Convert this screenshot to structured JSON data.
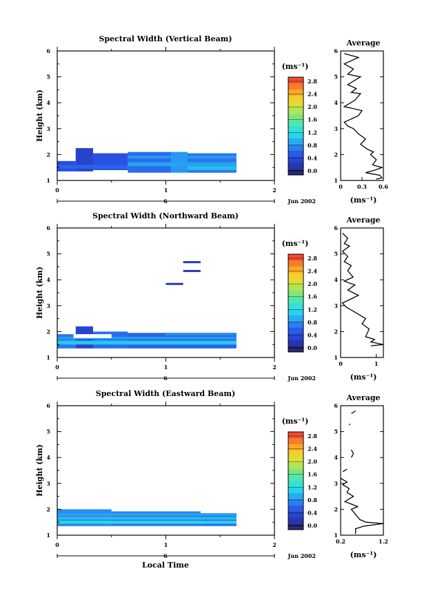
{
  "figure": {
    "xlabel": "Local Time",
    "date_label": "Jun 2002",
    "date_day": "6",
    "height_label": "Height (km)",
    "colorbar_unit": "(ms⁻¹)",
    "avg_title": "Average",
    "avg_xlabel": "(ms⁻¹)"
  },
  "chart_data": [
    {
      "type": "heatmap",
      "title": "Spectral Width (Vertical Beam)",
      "ylabel": "Height (km)",
      "xlim": [
        0,
        2
      ],
      "ylim": [
        1,
        6
      ],
      "x_ticks": [
        "0",
        "1",
        "2"
      ],
      "y_ticks": [
        "1",
        "2",
        "3",
        "4",
        "5",
        "6"
      ],
      "colorbar": {
        "ticks": [
          "0.0",
          "0.4",
          "0.8",
          "1.2",
          "1.6",
          "2.0",
          "2.4",
          "2.8"
        ],
        "range": [
          0,
          3.0
        ]
      },
      "cells": [
        [
          0.0,
          0.17,
          1.35,
          1.75,
          0.55
        ],
        [
          0.17,
          0.33,
          1.35,
          2.25,
          0.45
        ],
        [
          0.33,
          0.65,
          1.4,
          2.05,
          0.6
        ],
        [
          0.65,
          1.05,
          1.3,
          2.1,
          0.75
        ],
        [
          1.05,
          1.2,
          1.3,
          2.1,
          0.95
        ],
        [
          1.2,
          1.65,
          1.3,
          2.05,
          0.8
        ],
        [
          0.0,
          0.65,
          1.45,
          1.6,
          0.7
        ],
        [
          0.65,
          1.65,
          1.55,
          1.7,
          1.0
        ],
        [
          0.65,
          1.65,
          1.85,
          1.95,
          0.95
        ],
        [
          1.2,
          1.65,
          1.4,
          1.55,
          1.1
        ]
      ],
      "average": {
        "xlim": [
          0,
          0.6
        ],
        "x_ticks": [
          "0",
          "0.3",
          "0.6"
        ],
        "profile": [
          [
            0.5,
            1.05
          ],
          [
            0.58,
            1.1
          ],
          [
            0.55,
            1.2
          ],
          [
            0.35,
            1.3
          ],
          [
            0.48,
            1.4
          ],
          [
            0.58,
            1.5
          ],
          [
            0.45,
            1.6
          ],
          [
            0.5,
            1.8
          ],
          [
            0.42,
            2.0
          ],
          [
            0.46,
            2.1
          ],
          [
            0.38,
            2.2
          ],
          [
            0.28,
            2.4
          ],
          [
            0.35,
            2.6
          ],
          [
            0.25,
            2.8
          ],
          [
            0.18,
            3.0
          ],
          [
            0.1,
            3.1
          ],
          [
            0.05,
            3.25
          ],
          [
            0.25,
            3.5
          ],
          [
            0.3,
            3.7
          ],
          [
            0.05,
            3.85
          ],
          [
            0.2,
            4.1
          ],
          [
            0.28,
            4.35
          ],
          [
            0.15,
            4.4
          ],
          [
            0.22,
            4.55
          ],
          [
            0.1,
            4.7
          ],
          [
            0.28,
            5.0
          ],
          [
            0.1,
            5.1
          ],
          [
            0.18,
            5.3
          ],
          [
            0.05,
            5.5
          ],
          [
            0.25,
            5.75
          ],
          [
            0.05,
            5.9
          ]
        ]
      }
    },
    {
      "type": "heatmap",
      "title": "Spectral Width (Northward Beam)",
      "ylabel": "Height (km)",
      "xlim": [
        0,
        2
      ],
      "ylim": [
        1,
        6
      ],
      "x_ticks": [
        "0",
        "1",
        "2"
      ],
      "y_ticks": [
        "1",
        "2",
        "3",
        "4",
        "5",
        "6"
      ],
      "colorbar": {
        "ticks": [
          "0.0",
          "0.4",
          "0.8",
          "1.2",
          "1.6",
          "2.0",
          "2.4",
          "2.8"
        ],
        "range": [
          0,
          3.0
        ]
      },
      "cells": [
        [
          0.0,
          0.17,
          1.35,
          1.9,
          0.8
        ],
        [
          0.17,
          0.33,
          1.35,
          2.2,
          0.45
        ],
        [
          0.33,
          0.65,
          1.35,
          2.0,
          0.75
        ],
        [
          0.65,
          1.65,
          1.35,
          1.95,
          0.7
        ],
        [
          0.0,
          1.65,
          1.5,
          1.65,
          1.15
        ],
        [
          0.0,
          1.65,
          1.7,
          1.8,
          0.95
        ],
        [
          1.0,
          1.65,
          1.85,
          1.95,
          0.9
        ],
        [
          0.15,
          0.5,
          1.75,
          1.9,
          -1
        ],
        [
          1.0,
          1.16,
          3.8,
          3.88,
          0.3
        ],
        [
          1.16,
          1.32,
          4.3,
          4.38,
          0.3
        ],
        [
          1.16,
          1.32,
          4.64,
          4.72,
          0.3
        ]
      ],
      "average": {
        "xlim": [
          0,
          1.2
        ],
        "x_ticks": [
          "0",
          "1"
        ],
        "profile": [
          [
            0.85,
            1.45
          ],
          [
            1.2,
            1.5
          ],
          [
            0.85,
            1.6
          ],
          [
            0.95,
            1.7
          ],
          [
            0.7,
            1.8
          ],
          [
            0.8,
            2.1
          ],
          [
            0.6,
            2.3
          ],
          [
            0.7,
            2.5
          ],
          [
            0.4,
            2.75
          ],
          [
            0.15,
            2.95
          ],
          [
            0.05,
            3.1
          ],
          [
            0.35,
            3.3
          ],
          [
            0.5,
            3.4
          ],
          [
            0.2,
            3.6
          ],
          [
            0.4,
            3.8
          ],
          [
            0.1,
            3.95
          ],
          [
            0.35,
            4.1
          ],
          [
            0.2,
            4.35
          ],
          [
            0.3,
            4.55
          ],
          [
            0.1,
            4.7
          ],
          [
            0.2,
            4.9
          ],
          [
            0.05,
            5.1
          ],
          [
            0.25,
            5.3
          ],
          [
            0.1,
            5.4
          ],
          [
            0.2,
            5.6
          ],
          [
            0.05,
            5.8
          ]
        ]
      }
    },
    {
      "type": "heatmap",
      "title": "Spectral Width (Eastward Beam)",
      "ylabel": "Height (km)",
      "xlim": [
        0,
        2
      ],
      "ylim": [
        1,
        6
      ],
      "x_ticks": [
        "0",
        "1",
        "2"
      ],
      "y_ticks": [
        "1",
        "2",
        "3",
        "4",
        "5",
        "6"
      ],
      "colorbar": {
        "ticks": [
          "0.0",
          "0.4",
          "0.8",
          "1.2",
          "1.6",
          "2.0",
          "2.4",
          "2.8"
        ],
        "range": [
          0,
          3.0
        ]
      },
      "cells": [
        [
          0.0,
          0.5,
          1.35,
          2.0,
          0.9
        ],
        [
          0.5,
          1.32,
          1.35,
          1.92,
          0.85
        ],
        [
          1.32,
          1.65,
          1.35,
          1.85,
          0.8
        ],
        [
          0.0,
          1.65,
          1.45,
          1.55,
          1.3
        ],
        [
          0.0,
          1.65,
          1.6,
          1.7,
          1.1
        ],
        [
          0.0,
          1.65,
          1.75,
          1.85,
          1.0
        ]
      ],
      "average": {
        "xlim": [
          0.2,
          1.2
        ],
        "x_ticks": [
          "0.2",
          "1.2"
        ],
        "profile": [
          [
            0.55,
            1.05
          ],
          [
            0.55,
            1.25
          ],
          [
            0.75,
            1.35
          ],
          [
            1.2,
            1.45
          ],
          [
            0.8,
            1.5
          ],
          [
            0.65,
            1.6
          ],
          [
            0.55,
            1.8
          ],
          [
            0.45,
            2.0
          ],
          [
            0.6,
            2.1
          ],
          [
            0.3,
            2.3
          ],
          [
            0.5,
            2.5
          ],
          [
            0.35,
            2.65
          ],
          [
            0.4,
            2.8
          ],
          [
            0.25,
            2.95
          ],
          [
            0.35,
            3.05
          ],
          [
            0.2,
            3.2
          ],
          [
            null,
            null
          ],
          [
            0.25,
            3.45
          ],
          [
            0.35,
            3.55
          ],
          [
            null,
            null
          ],
          [
            0.45,
            4.0
          ],
          [
            0.5,
            4.15
          ],
          [
            0.45,
            4.3
          ],
          [
            null,
            null
          ],
          [
            0.4,
            5.25
          ],
          [
            0.42,
            5.3
          ],
          [
            null,
            null
          ],
          [
            0.45,
            5.7
          ],
          [
            0.55,
            5.8
          ]
        ]
      }
    }
  ]
}
